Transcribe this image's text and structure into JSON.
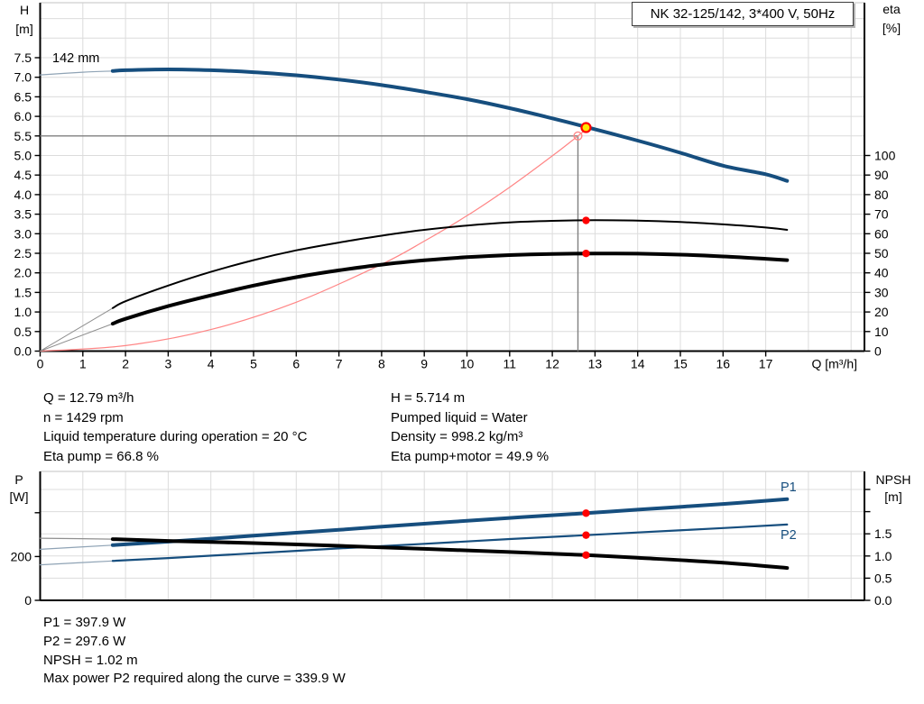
{
  "colors": {
    "blue": "#164e7e",
    "black": "#000000",
    "red_line": "#ff8585",
    "red_dot": "#ff0000",
    "yellow": "#ffe600",
    "crosshair": "#808080",
    "grid": "#dcdcdc",
    "frame_top": "#cfcfcf",
    "thin_blue": "#8fa3b5",
    "thin_gray": "#8f8f8f"
  },
  "chart_data": [
    {
      "id": "qh",
      "type": "line",
      "title": "NK 32-125/142, 3*400 V, 50Hz",
      "x_axis": {
        "label": "Q [m³/h]",
        "ticks": [
          "0",
          "1",
          "2",
          "3",
          "4",
          "5",
          "6",
          "7",
          "8",
          "9",
          "10",
          "11",
          "12",
          "13",
          "14",
          "15",
          "16",
          "17"
        ]
      },
      "y_left": {
        "label_lines": [
          "H",
          "[m]"
        ],
        "ticks": [
          "0.0",
          "0.5",
          "1.0",
          "1.5",
          "2.0",
          "2.5",
          "3.0",
          "3.5",
          "4.0",
          "4.5",
          "5.0",
          "5.5",
          "6.0",
          "6.5",
          "7.0",
          "7.5"
        ]
      },
      "y_right": {
        "label_lines": [
          "eta",
          "[%]"
        ],
        "ticks": [
          "0",
          "10",
          "20",
          "30",
          "40",
          "50",
          "60",
          "70",
          "80",
          "90",
          "100"
        ]
      },
      "grid": true,
      "series": [
        {
          "name": "142 mm",
          "axis": "h",
          "color": "blue",
          "width": 4,
          "thick_from": 1.7,
          "points": [
            [
              0,
              7.06
            ],
            [
              1,
              7.13
            ],
            [
              1.7,
              7.16
            ],
            [
              2,
              7.18
            ],
            [
              3,
              7.2
            ],
            [
              4,
              7.18
            ],
            [
              5,
              7.13
            ],
            [
              6,
              7.05
            ],
            [
              7,
              6.94
            ],
            [
              8,
              6.8
            ],
            [
              9,
              6.63
            ],
            [
              10,
              6.44
            ],
            [
              11,
              6.21
            ],
            [
              12,
              5.95
            ],
            [
              13,
              5.67
            ],
            [
              14,
              5.38
            ],
            [
              15,
              5.07
            ],
            [
              16,
              4.74
            ],
            [
              17,
              4.52
            ],
            [
              17.5,
              4.35
            ]
          ]
        },
        {
          "name": "eta pump",
          "axis": "eta",
          "color": "black",
          "width": 2,
          "lead_from_origin": true,
          "points": [
            [
              1.7,
              22
            ],
            [
              2,
              25.5
            ],
            [
              3,
              33.5
            ],
            [
              4,
              40.5
            ],
            [
              5,
              46.5
            ],
            [
              6,
              51.5
            ],
            [
              7,
              55.5
            ],
            [
              8,
              59
            ],
            [
              9,
              62
            ],
            [
              10,
              64.2
            ],
            [
              11,
              65.8
            ],
            [
              12,
              66.6
            ],
            [
              13,
              66.9
            ],
            [
              14,
              66.7
            ],
            [
              15,
              66
            ],
            [
              16,
              64.8
            ],
            [
              17,
              63.2
            ],
            [
              17.5,
              62
            ]
          ]
        },
        {
          "name": "eta pump+motor",
          "axis": "eta",
          "color": "black",
          "width": 4,
          "lead_from_origin": true,
          "points": [
            [
              1.7,
              14
            ],
            [
              2,
              16.5
            ],
            [
              3,
              23
            ],
            [
              4,
              28.5
            ],
            [
              5,
              33.5
            ],
            [
              6,
              37.8
            ],
            [
              7,
              41.3
            ],
            [
              8,
              44.2
            ],
            [
              9,
              46.4
            ],
            [
              10,
              48
            ],
            [
              11,
              49.1
            ],
            [
              12,
              49.7
            ],
            [
              13,
              49.9
            ],
            [
              14,
              49.8
            ],
            [
              15,
              49.3
            ],
            [
              16,
              48.4
            ],
            [
              17,
              47.2
            ],
            [
              17.5,
              46.5
            ]
          ]
        },
        {
          "name": "system curve",
          "axis": "h",
          "color": "red_line",
          "width": 1.2,
          "points": [
            [
              0,
              0
            ],
            [
              2,
              0.14
            ],
            [
              4,
              0.55
            ],
            [
              6,
              1.25
            ],
            [
              8,
              2.22
            ],
            [
              9,
              2.81
            ],
            [
              10,
              3.46
            ],
            [
              11,
              4.19
            ],
            [
              12,
              4.99
            ],
            [
              12.6,
              5.5
            ],
            [
              12.9,
              5.77
            ]
          ]
        }
      ],
      "duty_point": {
        "q_requested": 12.6,
        "h_requested": 5.5,
        "q": 12.79,
        "h": 5.714,
        "eta_dots": [
          66.8,
          49.9
        ]
      }
    },
    {
      "id": "power",
      "type": "line",
      "x_axis": {
        "label": "",
        "ticks": []
      },
      "y_left": {
        "label_lines": [
          "P",
          "[W]"
        ],
        "tick_values": [
          0,
          200,
          400
        ],
        "tick_labels": [
          "0",
          "200"
        ]
      },
      "y_right": {
        "label_lines": [
          "NPSH",
          "[m]"
        ],
        "tick_values": [
          0,
          0.5,
          1,
          1.5,
          2,
          2.5
        ],
        "tick_labels": [
          "0.0",
          "0.5",
          "1.0",
          "1.5"
        ]
      },
      "grid": true,
      "series": [
        {
          "name": "P1",
          "axis": "p",
          "color": "blue",
          "width": 4,
          "thick_from": 1.7,
          "points": [
            [
              0,
              233
            ],
            [
              1.7,
              252
            ],
            [
              3,
              268
            ],
            [
              5,
              295
            ],
            [
              7,
              322
            ],
            [
              9,
              350
            ],
            [
              11,
              376
            ],
            [
              12.79,
              398
            ],
            [
              14,
              414
            ],
            [
              16,
              440
            ],
            [
              17.5,
              462
            ]
          ]
        },
        {
          "name": "P2",
          "axis": "p",
          "color": "blue",
          "width": 2.2,
          "thick_from": 1.7,
          "points": [
            [
              0,
              162
            ],
            [
              1.7,
              180
            ],
            [
              3,
              193
            ],
            [
              5,
              215
            ],
            [
              7,
              237
            ],
            [
              9,
              258
            ],
            [
              11,
              280
            ],
            [
              12.79,
              297.6
            ],
            [
              14,
              310
            ],
            [
              16,
              330
            ],
            [
              17.5,
              346
            ]
          ]
        },
        {
          "name": "NPSH",
          "axis": "npsh",
          "color": "black",
          "width": 4,
          "thick_from": 1.7,
          "points": [
            [
              0,
              1.4
            ],
            [
              1.7,
              1.38
            ],
            [
              3,
              1.34
            ],
            [
              5,
              1.29
            ],
            [
              7,
              1.23
            ],
            [
              9,
              1.16
            ],
            [
              11,
              1.09
            ],
            [
              12.79,
              1.02
            ],
            [
              14,
              0.96
            ],
            [
              16,
              0.85
            ],
            [
              17.5,
              0.73
            ]
          ]
        }
      ],
      "q_duty": 12.79,
      "duty_dots": [
        {
          "axis": "p",
          "v": 397.9
        },
        {
          "axis": "p",
          "v": 297.6
        },
        {
          "axis": "npsh",
          "v": 1.02
        }
      ]
    }
  ],
  "info_text": {
    "left": [
      "Q = 12.79 m³/h",
      "n = 1429 rpm",
      "Liquid temperature during operation = 20 °C",
      "Eta pump = 66.8 %"
    ],
    "right": [
      "H = 5.714 m",
      "Pumped liquid = Water",
      "Density = 998.2 kg/m³",
      "Eta pump+motor = 49.9 %"
    ]
  },
  "bottom_text": [
    "P1 = 397.9 W",
    "P2 = 297.6 W",
    "NPSH = 1.02 m",
    "Max power P2 required along the curve = 339.9 W"
  ]
}
